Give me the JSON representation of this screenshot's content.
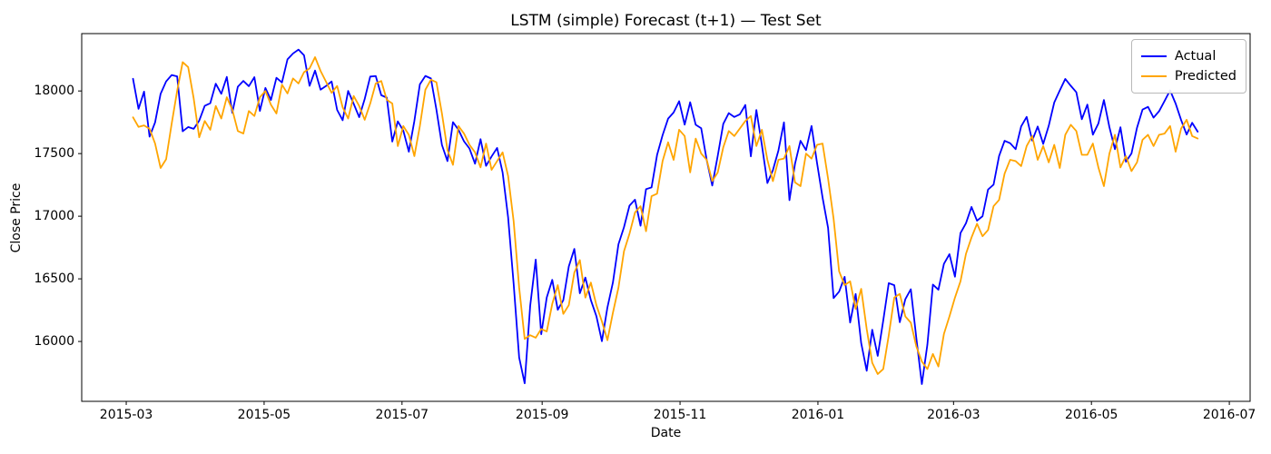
{
  "chart_data": {
    "type": "line",
    "title": "LSTM (simple) Forecast (t+1) — Test Set",
    "xlabel": "Date",
    "ylabel": "Close Price",
    "grid": false,
    "legend_position": "upper right",
    "background": "#ffffff",
    "x_tick_labels": [
      "2015-03",
      "2015-05",
      "2015-07",
      "2015-09",
      "2015-11",
      "2016-01",
      "2016-03",
      "2016-05",
      "2016-07"
    ],
    "x_tick_day_offsets": [
      0,
      61,
      122,
      184,
      245,
      306,
      366,
      427,
      488
    ],
    "y_ticks": [
      16000,
      16500,
      17000,
      17500,
      18000
    ],
    "xlim_day_offsets": [
      -19.7,
      497.2
    ],
    "ylim": [
      15522,
      18458
    ],
    "x_start_day_offset": 3,
    "x_end_day_offset": 474,
    "series": [
      {
        "name": "Actual",
        "color": "#0000ff",
        "values": [
          18097,
          17857,
          17995,
          17635,
          17749,
          17977,
          18076,
          18127,
          18116,
          17678,
          17712,
          17698,
          17763,
          17881,
          17902,
          18058,
          17977,
          18112,
          17826,
          18034,
          18080,
          18038,
          18110,
          17841,
          18024,
          17928,
          18105,
          18068,
          18252,
          18299,
          18330,
          18285,
          18041,
          18163,
          18010,
          18040,
          18076,
          17849,
          17766,
          18000,
          17898,
          17791,
          17936,
          18115,
          18119,
          17966,
          17947,
          17596,
          17757,
          17683,
          17515,
          17760,
          18053,
          18120,
          18100,
          17851,
          17569,
          17440,
          17751,
          17690,
          17598,
          17540,
          17419,
          17615,
          17402,
          17477,
          17545,
          17349,
          16990,
          16460,
          15871,
          15666,
          16285,
          16654,
          16058,
          16351,
          16492,
          16253,
          16330,
          16599,
          16739,
          16385,
          16510,
          16330,
          16202,
          16002,
          16272,
          16472,
          16776,
          16912,
          17084,
          17132,
          16924,
          17216,
          17230,
          17489,
          17647,
          17779,
          17828,
          17918,
          17731,
          17910,
          17730,
          17702,
          17448,
          17245,
          17483,
          17737,
          17823,
          17792,
          17813,
          17888,
          17478,
          17848,
          17568,
          17265,
          17368,
          17525,
          17749,
          17128,
          17417,
          17602,
          17528,
          17720,
          17425,
          17149,
          16907,
          16346,
          16398,
          16516,
          16151,
          16379,
          15988,
          15766,
          16094,
          15885,
          16167,
          16466,
          16449,
          16154,
          16337,
          16417,
          16027,
          15660,
          15974,
          16454,
          16413,
          16620,
          16697,
          16517,
          16865,
          16944,
          17074,
          16964,
          17000,
          17213,
          17252,
          17481,
          17602,
          17583,
          17535,
          17717,
          17793,
          17604,
          17716,
          17577,
          17722,
          17908,
          18004,
          18096,
          18041,
          17990,
          17774,
          17891,
          17651,
          17740,
          17928,
          17711,
          17535,
          17710,
          17435,
          17501,
          17706,
          17851,
          17873,
          17787,
          17838,
          17920,
          18005,
          17900,
          17768,
          17652,
          17746,
          17675
        ]
      },
      {
        "name": "Predicted",
        "color": "#ffa500",
        "values": [
          17790,
          17713,
          17725,
          17698,
          17580,
          17385,
          17455,
          17737,
          18000,
          18230,
          18190,
          17940,
          17630,
          17760,
          17690,
          17880,
          17780,
          17950,
          17850,
          17680,
          17660,
          17840,
          17800,
          17950,
          18000,
          17890,
          17820,
          18050,
          17980,
          18100,
          18060,
          18150,
          18180,
          18270,
          18160,
          18073,
          17985,
          18040,
          17870,
          17780,
          17960,
          17880,
          17770,
          17900,
          18060,
          18080,
          17930,
          17900,
          17560,
          17720,
          17650,
          17480,
          17720,
          18010,
          18090,
          18070,
          17820,
          17530,
          17410,
          17720,
          17660,
          17570,
          17510,
          17390,
          17580,
          17370,
          17440,
          17510,
          17320,
          16960,
          16430,
          16020,
          16050,
          16030,
          16100,
          16080,
          16300,
          16450,
          16220,
          16290,
          16550,
          16650,
          16350,
          16470,
          16290,
          16160,
          16010,
          16230,
          16430,
          16720,
          16860,
          17030,
          17080,
          16880,
          17160,
          17180,
          17440,
          17590,
          17450,
          17690,
          17640,
          17350,
          17620,
          17500,
          17450,
          17280,
          17350,
          17550,
          17680,
          17640,
          17700,
          17760,
          17800,
          17560,
          17690,
          17450,
          17280,
          17450,
          17460,
          17560,
          17270,
          17240,
          17500,
          17460,
          17570,
          17580,
          17300,
          16980,
          16560,
          16450,
          16480,
          16260,
          16420,
          16100,
          15830,
          15740,
          15780,
          16050,
          16350,
          16380,
          16200,
          16150,
          15960,
          15840,
          15780,
          15900,
          15800,
          16060,
          16200,
          16350,
          16480,
          16700,
          16830,
          16940,
          16840,
          16890,
          17080,
          17130,
          17340,
          17450,
          17440,
          17400,
          17560,
          17640,
          17450,
          17560,
          17430,
          17570,
          17385,
          17650,
          17730,
          17680,
          17490,
          17490,
          17580,
          17390,
          17240,
          17500,
          17650,
          17390,
          17480,
          17360,
          17430,
          17610,
          17650,
          17560,
          17650,
          17660,
          17720,
          17515,
          17700,
          17770,
          17640,
          17620
        ]
      }
    ]
  }
}
